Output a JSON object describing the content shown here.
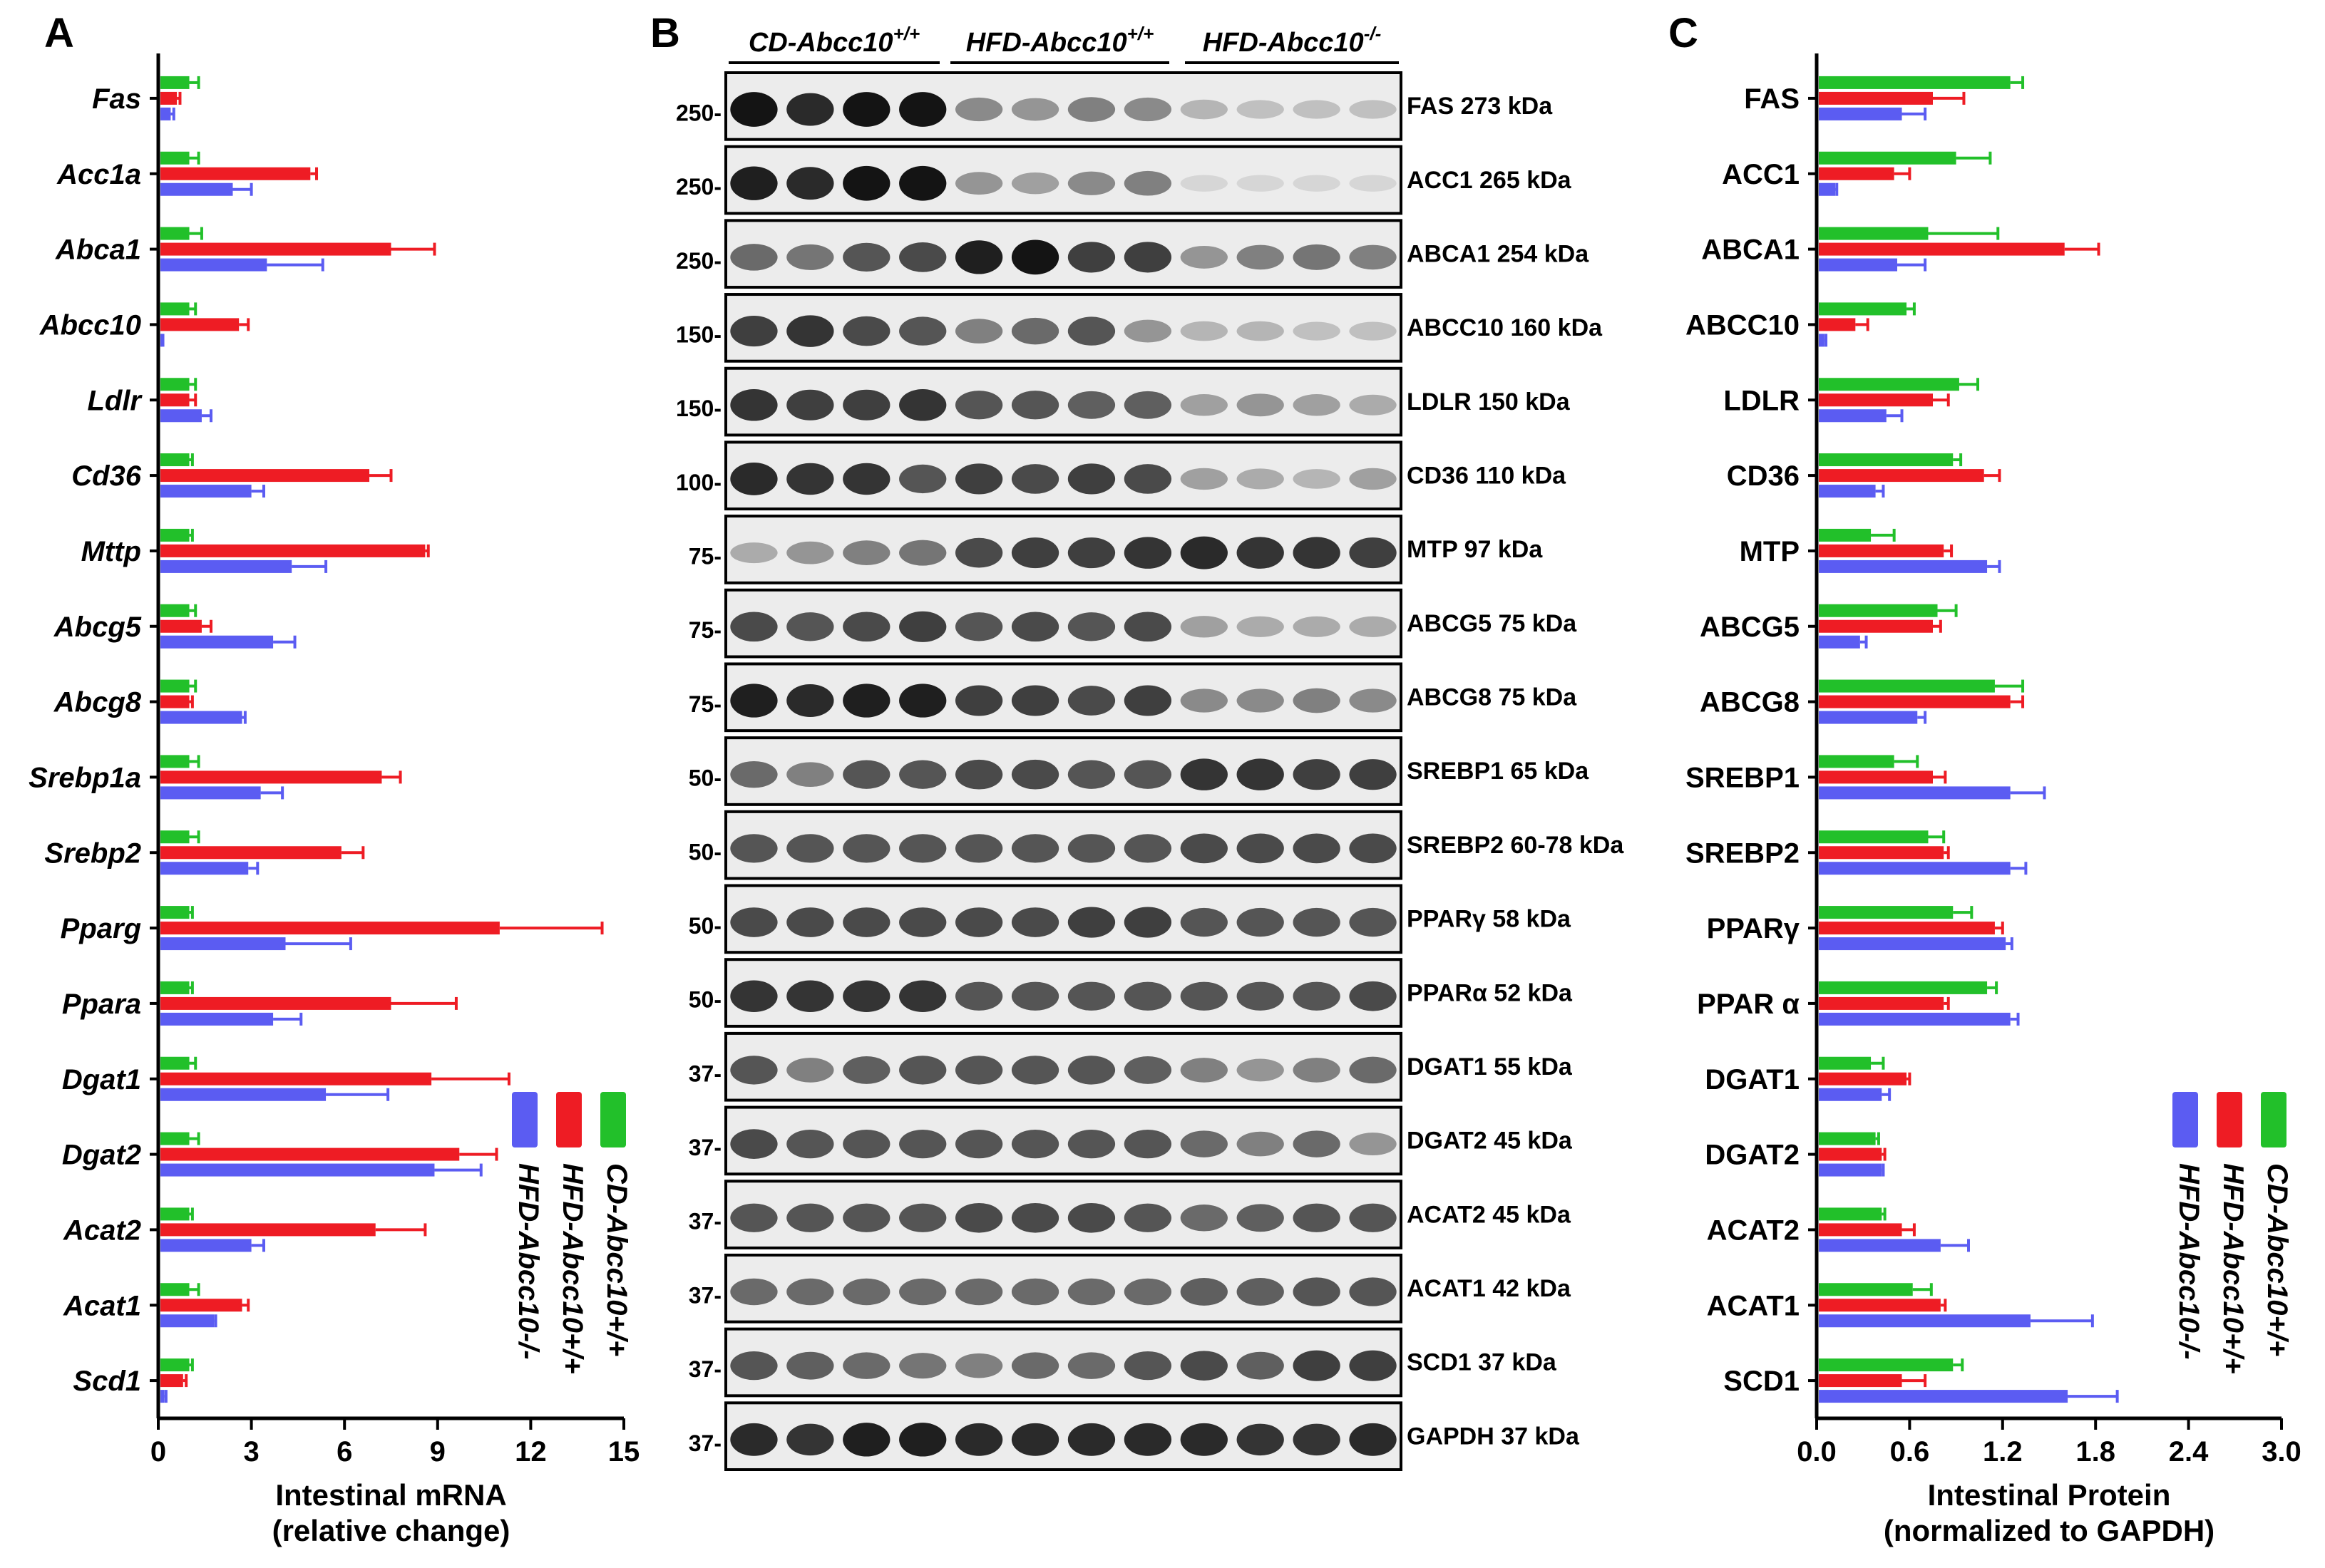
{
  "colors": {
    "cd": "#22c02a",
    "hfd_wt": "#ee1c24",
    "hfd_ko": "#5b5cf2",
    "axis": "#000000"
  },
  "panels": {
    "a_letter": "A",
    "b_letter": "B",
    "c_letter": "C"
  },
  "legend": {
    "cd": "CD-Abcc10+/+",
    "hfd_wt": "HFD-Abcc10+/+",
    "hfd_ko": "HFD-Abcc10-/-"
  },
  "blot": {
    "groups": [
      {
        "base": "CD-Abcc10",
        "sup": "+/+"
      },
      {
        "base": "HFD-Abcc10",
        "sup": "+/+"
      },
      {
        "base": "HFD-Abcc10",
        "sup": "-/-"
      }
    ],
    "rows": [
      {
        "label": "FAS 273 kDa",
        "marker": "250-",
        "pattern": [
          1.0,
          0.9,
          1.0,
          1.0,
          0.45,
          0.4,
          0.5,
          0.45,
          0.25,
          0.2,
          0.2,
          0.2
        ]
      },
      {
        "label": "ACC1 265 kDa",
        "marker": "250-",
        "pattern": [
          0.95,
          0.9,
          1.0,
          1.0,
          0.4,
          0.35,
          0.45,
          0.5,
          0.1,
          0.1,
          0.1,
          0.1
        ]
      },
      {
        "label": "ABCA1 254 kDa",
        "marker": "250-",
        "pattern": [
          0.6,
          0.55,
          0.7,
          0.75,
          0.95,
          1.0,
          0.8,
          0.8,
          0.4,
          0.5,
          0.55,
          0.5
        ]
      },
      {
        "label": "ABCC10 160 kDa",
        "marker": "150-",
        "pattern": [
          0.8,
          0.85,
          0.75,
          0.7,
          0.5,
          0.6,
          0.7,
          0.4,
          0.25,
          0.25,
          0.2,
          0.2
        ]
      },
      {
        "label": "LDLR 150 kDa",
        "marker": "150-",
        "pattern": [
          0.85,
          0.8,
          0.8,
          0.85,
          0.7,
          0.7,
          0.65,
          0.65,
          0.35,
          0.4,
          0.35,
          0.3
        ]
      },
      {
        "label": "CD36 110 kDa",
        "marker": "100-",
        "pattern": [
          0.9,
          0.85,
          0.85,
          0.7,
          0.8,
          0.75,
          0.8,
          0.75,
          0.35,
          0.3,
          0.25,
          0.35
        ]
      },
      {
        "label": "MTP 97 kDa",
        "marker": "75-",
        "pattern": [
          0.3,
          0.4,
          0.5,
          0.55,
          0.75,
          0.8,
          0.8,
          0.85,
          0.9,
          0.85,
          0.85,
          0.8
        ]
      },
      {
        "label": "ABCG5 75 kDa",
        "marker": "75-",
        "pattern": [
          0.75,
          0.7,
          0.75,
          0.8,
          0.7,
          0.75,
          0.7,
          0.75,
          0.35,
          0.3,
          0.3,
          0.3
        ]
      },
      {
        "label": "ABCG8 75 kDa",
        "marker": "75-",
        "pattern": [
          0.95,
          0.9,
          0.95,
          0.95,
          0.8,
          0.8,
          0.75,
          0.8,
          0.45,
          0.45,
          0.5,
          0.45
        ]
      },
      {
        "label": "SREBP1 65 kDa",
        "marker": "50-",
        "pattern": [
          0.6,
          0.5,
          0.7,
          0.7,
          0.75,
          0.75,
          0.7,
          0.7,
          0.85,
          0.85,
          0.8,
          0.8
        ]
      },
      {
        "label": "SREBP2 60-78 kDa",
        "marker": "50-",
        "pattern": [
          0.7,
          0.7,
          0.7,
          0.7,
          0.7,
          0.7,
          0.7,
          0.7,
          0.75,
          0.75,
          0.75,
          0.75
        ]
      },
      {
        "label": "PPARγ 58 kDa",
        "marker": "50-",
        "pattern": [
          0.75,
          0.75,
          0.75,
          0.75,
          0.75,
          0.75,
          0.8,
          0.8,
          0.7,
          0.7,
          0.7,
          0.7
        ]
      },
      {
        "label": "PPARα  52 kDa",
        "marker": "50-",
        "pattern": [
          0.85,
          0.85,
          0.85,
          0.85,
          0.7,
          0.7,
          0.7,
          0.7,
          0.7,
          0.7,
          0.7,
          0.75
        ]
      },
      {
        "label": "DGAT1 55 kDa",
        "marker": "37-",
        "pattern": [
          0.7,
          0.5,
          0.65,
          0.7,
          0.7,
          0.7,
          0.7,
          0.65,
          0.5,
          0.4,
          0.5,
          0.6
        ]
      },
      {
        "label": "DGAT2 45 kDa",
        "marker": "37-",
        "pattern": [
          0.75,
          0.7,
          0.7,
          0.7,
          0.7,
          0.7,
          0.7,
          0.7,
          0.6,
          0.5,
          0.6,
          0.4
        ]
      },
      {
        "label": "ACAT2 45 kDa",
        "marker": "37-",
        "pattern": [
          0.7,
          0.7,
          0.7,
          0.7,
          0.75,
          0.75,
          0.75,
          0.7,
          0.6,
          0.65,
          0.7,
          0.7
        ]
      },
      {
        "label": "ACAT1 42 kDa",
        "marker": "37-",
        "pattern": [
          0.6,
          0.6,
          0.6,
          0.6,
          0.6,
          0.6,
          0.6,
          0.6,
          0.65,
          0.65,
          0.7,
          0.7
        ]
      },
      {
        "label": "SCD1 37 kDa",
        "marker": "37-",
        "pattern": [
          0.7,
          0.65,
          0.6,
          0.55,
          0.5,
          0.6,
          0.6,
          0.7,
          0.75,
          0.65,
          0.8,
          0.8
        ]
      },
      {
        "label": "GAPDH 37 kDa",
        "marker": "37-",
        "pattern": [
          0.9,
          0.85,
          0.95,
          0.95,
          0.9,
          0.9,
          0.9,
          0.9,
          0.9,
          0.85,
          0.85,
          0.9
        ]
      }
    ]
  },
  "chart_data": [
    {
      "type": "bar",
      "orientation": "horizontal",
      "panel": "A",
      "categories": [
        "Fas",
        "Acc1a",
        "Abca1",
        "Abcc10",
        "Ldlr",
        "Cd36",
        "Mttp",
        "Abcg5",
        "Abcg8",
        "Srebp1a",
        "Srebp2",
        "Pparg",
        "Ppara",
        "Dgat1",
        "Dgat2",
        "Acat2",
        "Acat1",
        "Scd1"
      ],
      "series": [
        {
          "name": "CD-Abcc10+/+",
          "color_key": "cd",
          "values": [
            1.0,
            1.0,
            1.0,
            1.0,
            1.0,
            1.0,
            1.0,
            1.0,
            1.0,
            1.0,
            1.0,
            1.0,
            1.0,
            1.0,
            1.0,
            1.0,
            1.0,
            1.0
          ],
          "errors": [
            0.3,
            0.3,
            0.4,
            0.2,
            0.2,
            0.1,
            0.1,
            0.2,
            0.2,
            0.3,
            0.3,
            0.1,
            0.1,
            0.2,
            0.3,
            0.1,
            0.3,
            0.1
          ]
        },
        {
          "name": "HFD-Abcc10+/+",
          "color_key": "hfd_wt",
          "values": [
            0.6,
            4.9,
            7.5,
            2.6,
            1.0,
            6.8,
            8.6,
            1.4,
            1.0,
            7.2,
            5.9,
            11.0,
            7.5,
            8.8,
            9.7,
            7.0,
            2.7,
            0.8
          ],
          "errors": [
            0.1,
            0.2,
            1.4,
            0.3,
            0.2,
            0.7,
            0.1,
            0.3,
            0.1,
            0.6,
            0.7,
            3.3,
            2.1,
            2.5,
            1.2,
            1.6,
            0.2,
            0.1
          ]
        },
        {
          "name": "HFD-Abcc10-/-",
          "color_key": "hfd_ko",
          "values": [
            0.4,
            2.4,
            3.5,
            0.1,
            1.4,
            3.0,
            4.3,
            3.7,
            2.7,
            3.3,
            2.9,
            4.1,
            3.7,
            5.4,
            8.9,
            3.0,
            1.8,
            0.2
          ],
          "errors": [
            0.1,
            0.6,
            1.8,
            0.05,
            0.3,
            0.4,
            1.1,
            0.7,
            0.1,
            0.7,
            0.3,
            2.1,
            0.9,
            2.0,
            1.5,
            0.4,
            0.05,
            0.05
          ]
        }
      ],
      "xlabel_line1": "Intestinal mRNA",
      "xlabel_line2": "(relative change)",
      "xlim": [
        0,
        15
      ],
      "xticks": [
        "0",
        "3",
        "6",
        "9",
        "12",
        "15"
      ]
    },
    {
      "type": "bar",
      "orientation": "horizontal",
      "panel": "C",
      "categories": [
        "FAS",
        "ACC1",
        "ABCA1",
        "ABCC10",
        "LDLR",
        "CD36",
        "MTP",
        "ABCG5",
        "ABCG8",
        "SREBP1",
        "SREBP2",
        "PPARγ",
        "PPAR α",
        "DGAT1",
        "DGAT2",
        "ACAT2",
        "ACAT1",
        "SCD1"
      ],
      "series": [
        {
          "name": "CD-Abcc10+/+",
          "color_key": "cd",
          "values": [
            1.25,
            0.9,
            0.72,
            0.58,
            0.92,
            0.88,
            0.35,
            0.78,
            1.15,
            0.5,
            0.72,
            0.88,
            1.1,
            0.35,
            0.38,
            0.42,
            0.62,
            0.88
          ],
          "errors": [
            0.08,
            0.22,
            0.45,
            0.05,
            0.12,
            0.05,
            0.15,
            0.12,
            0.18,
            0.15,
            0.1,
            0.12,
            0.06,
            0.08,
            0.02,
            0.02,
            0.12,
            0.06
          ]
        },
        {
          "name": "HFD-Abcc10+/+",
          "color_key": "hfd_wt",
          "values": [
            0.75,
            0.5,
            1.6,
            0.25,
            0.75,
            1.08,
            0.82,
            0.75,
            1.25,
            0.75,
            0.82,
            1.15,
            0.82,
            0.58,
            0.42,
            0.55,
            0.8,
            0.55
          ],
          "errors": [
            0.2,
            0.1,
            0.22,
            0.08,
            0.1,
            0.1,
            0.05,
            0.05,
            0.08,
            0.08,
            0.03,
            0.05,
            0.03,
            0.02,
            0.02,
            0.08,
            0.03,
            0.15
          ]
        },
        {
          "name": "HFD-Abcc10-/-",
          "color_key": "hfd_ko",
          "values": [
            0.55,
            0.12,
            0.52,
            0.05,
            0.45,
            0.38,
            1.1,
            0.28,
            0.65,
            1.25,
            1.25,
            1.22,
            1.25,
            0.42,
            0.42,
            0.8,
            1.38,
            1.62
          ],
          "errors": [
            0.15,
            0.01,
            0.18,
            0.01,
            0.1,
            0.05,
            0.08,
            0.04,
            0.05,
            0.22,
            0.1,
            0.04,
            0.05,
            0.05,
            0.01,
            0.18,
            0.4,
            0.32
          ]
        }
      ],
      "xlabel_line1": "Intestinal Protein",
      "xlabel_line2": "(normalized to GAPDH)",
      "xlim": [
        0,
        3.0
      ],
      "xticks": [
        "0.0",
        "0.6",
        "1.2",
        "1.8",
        "2.4",
        "3.0"
      ]
    }
  ]
}
